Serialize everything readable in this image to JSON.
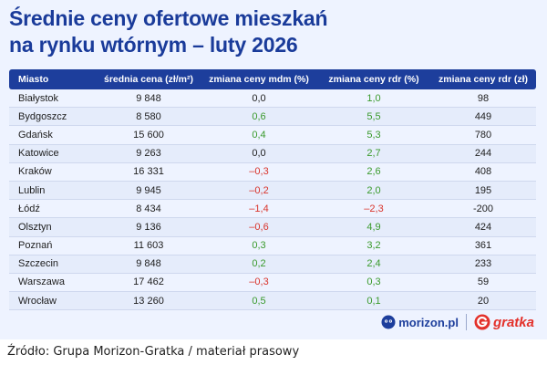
{
  "title": {
    "line1": "Średnie ceny ofertowe mieszkań",
    "line2": "na rynku wtórnym – luty 2026"
  },
  "table": {
    "headers": [
      "Miasto",
      "średnia cena (zł/m²)",
      "zmiana ceny mdm (%)",
      "zmiana ceny rdr (%)",
      "zmiana ceny rdr (zł)"
    ],
    "rows": [
      {
        "city": "Białystok",
        "price": "9 848",
        "mdm": "0,0",
        "mdm_sign": "zero",
        "rdr": "1,0",
        "rdr_sign": "pos",
        "rdr_zl": "98"
      },
      {
        "city": "Bydgoszcz",
        "price": "8 580",
        "mdm": "0,6",
        "mdm_sign": "pos",
        "rdr": "5,5",
        "rdr_sign": "pos",
        "rdr_zl": "449"
      },
      {
        "city": "Gdańsk",
        "price": "15 600",
        "mdm": "0,4",
        "mdm_sign": "pos",
        "rdr": "5,3",
        "rdr_sign": "pos",
        "rdr_zl": "780"
      },
      {
        "city": "Katowice",
        "price": "9 263",
        "mdm": "0,0",
        "mdm_sign": "zero",
        "rdr": "2,7",
        "rdr_sign": "pos",
        "rdr_zl": "244"
      },
      {
        "city": "Kraków",
        "price": "16 331",
        "mdm": "–0,3",
        "mdm_sign": "neg",
        "rdr": "2,6",
        "rdr_sign": "pos",
        "rdr_zl": "408"
      },
      {
        "city": "Lublin",
        "price": "9 945",
        "mdm": "–0,2",
        "mdm_sign": "neg",
        "rdr": "2,0",
        "rdr_sign": "pos",
        "rdr_zl": "195"
      },
      {
        "city": "Łódź",
        "price": "8 434",
        "mdm": "–1,4",
        "mdm_sign": "neg",
        "rdr": "–2,3",
        "rdr_sign": "neg",
        "rdr_zl": "-200"
      },
      {
        "city": "Olsztyn",
        "price": "9 136",
        "mdm": "–0,6",
        "mdm_sign": "neg",
        "rdr": "4,9",
        "rdr_sign": "pos",
        "rdr_zl": "424"
      },
      {
        "city": "Poznań",
        "price": "11 603",
        "mdm": "0,3",
        "mdm_sign": "pos",
        "rdr": "3,2",
        "rdr_sign": "pos",
        "rdr_zl": "361"
      },
      {
        "city": "Szczecin",
        "price": "9 848",
        "mdm": "0,2",
        "mdm_sign": "pos",
        "rdr": "2,4",
        "rdr_sign": "pos",
        "rdr_zl": "233"
      },
      {
        "city": "Warszawa",
        "price": "17 462",
        "mdm": "–0,3",
        "mdm_sign": "neg",
        "rdr": "0,3",
        "rdr_sign": "pos",
        "rdr_zl": "59"
      },
      {
        "city": "Wrocław",
        "price": "13 260",
        "mdm": "0,5",
        "mdm_sign": "pos",
        "rdr": "0,1",
        "rdr_sign": "pos",
        "rdr_zl": "20"
      }
    ]
  },
  "logos": {
    "morizon": "morizon.pl",
    "morizon_icon": "morizon-face-icon",
    "gratka": "gratka",
    "gratka_icon": "gratka-g-icon"
  },
  "colors": {
    "header_bg": "#1d3e9c",
    "title": "#1a3b9a",
    "positive": "#3a9a2c",
    "negative": "#d9342b",
    "card_bg": "#eef3ff"
  },
  "source": "Źródło: Grupa Morizon-Gratka / materiał prasowy"
}
